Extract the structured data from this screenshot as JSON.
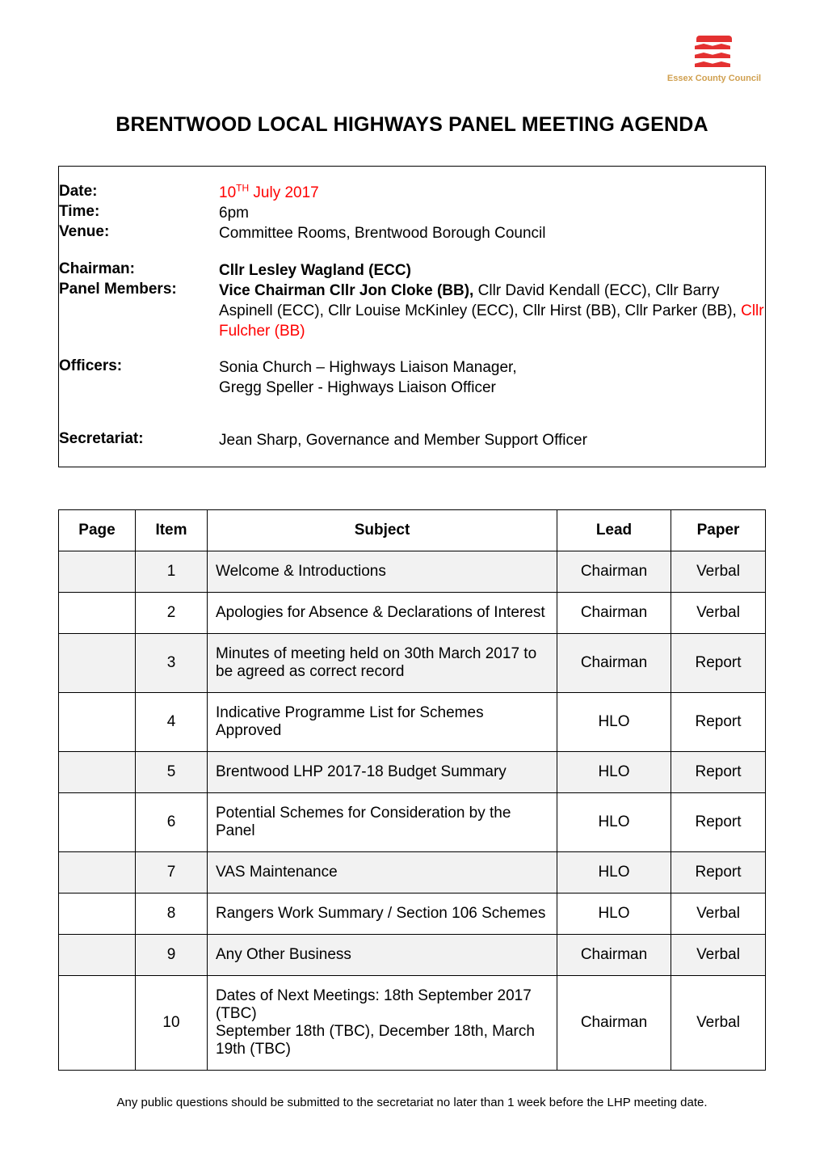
{
  "logo": {
    "org": "Essex County Council"
  },
  "title": "BRENTWOOD LOCAL HIGHWAYS PANEL MEETING AGENDA",
  "info": {
    "date_label": "Date:",
    "date_value_pre": "10",
    "date_value_sup": "TH",
    "date_value_post": " July 2017",
    "time_label": "Time:",
    "time_value": "6pm",
    "venue_label": "Venue:",
    "venue_value": "Committee Rooms, Brentwood Borough Council",
    "chair_label": "Chairman:",
    "chair_value": "Cllr Lesley Wagland (ECC)",
    "panel_label": "Panel Members:",
    "panel_bold": "Vice Chairman Cllr Jon Cloke (BB), ",
    "panel_rest_1": "Cllr David Kendall (ECC), Cllr Barry Aspinell (ECC), Cllr Louise McKinley (ECC), Cllr Hirst (BB), Cllr Parker (BB), ",
    "panel_red": "Cllr Fulcher (BB)",
    "officers_label": "Officers:",
    "officers_value": "Sonia Church – Highways Liaison Manager,\nGregg Speller - Highways Liaison Officer",
    "sec_label": "Secretariat:",
    "sec_value": "Jean Sharp, Governance and Member Support Officer"
  },
  "agenda": {
    "headers": {
      "page": "Page",
      "item": "Item",
      "subject": "Subject",
      "lead": "Lead",
      "paper": "Paper"
    },
    "rows": [
      {
        "page": "",
        "item": "1",
        "subject": "Welcome & Introductions",
        "lead": "Chairman",
        "paper": "Verbal",
        "shade": true
      },
      {
        "page": "",
        "item": "2",
        "subject": "Apologies for Absence & Declarations of Interest",
        "lead": "Chairman",
        "paper": "Verbal",
        "shade": false
      },
      {
        "page": "",
        "item": "3",
        "subject": "Minutes of meeting held on 30th March 2017 to be agreed as correct record",
        "lead": "Chairman",
        "paper": "Report",
        "shade": true
      },
      {
        "page": "",
        "item": "4",
        "subject": "Indicative Programme List for Schemes Approved",
        "lead": "HLO",
        "paper": "Report",
        "shade": false
      },
      {
        "page": "",
        "item": "5",
        "subject": "Brentwood LHP 2017-18 Budget Summary",
        "lead": "HLO",
        "paper": "Report",
        "shade": true
      },
      {
        "page": "",
        "item": "6",
        "subject": "Potential Schemes for Consideration by the Panel",
        "lead": "HLO",
        "paper": "Report",
        "shade": false
      },
      {
        "page": "",
        "item": "7",
        "subject": "VAS Maintenance",
        "lead": "HLO",
        "paper": "Report",
        "shade": true
      },
      {
        "page": "",
        "item": "8",
        "subject": "Rangers Work Summary / Section 106 Schemes",
        "lead": "HLO",
        "paper": "Verbal",
        "shade": false
      },
      {
        "page": "",
        "item": "9",
        "subject": "Any Other Business",
        "lead": "Chairman",
        "paper": "Verbal",
        "shade": true
      },
      {
        "page": "",
        "item": "10",
        "subject": "Dates of Next Meetings: 18th September 2017 (TBC)\nSeptember 18th (TBC), December 18th, March 19th (TBC)",
        "lead": "Chairman",
        "paper": "Verbal",
        "shade": false
      }
    ]
  },
  "footnote": "Any public questions should be submitted to the secretariat no later than 1 week before the LHP meeting date."
}
